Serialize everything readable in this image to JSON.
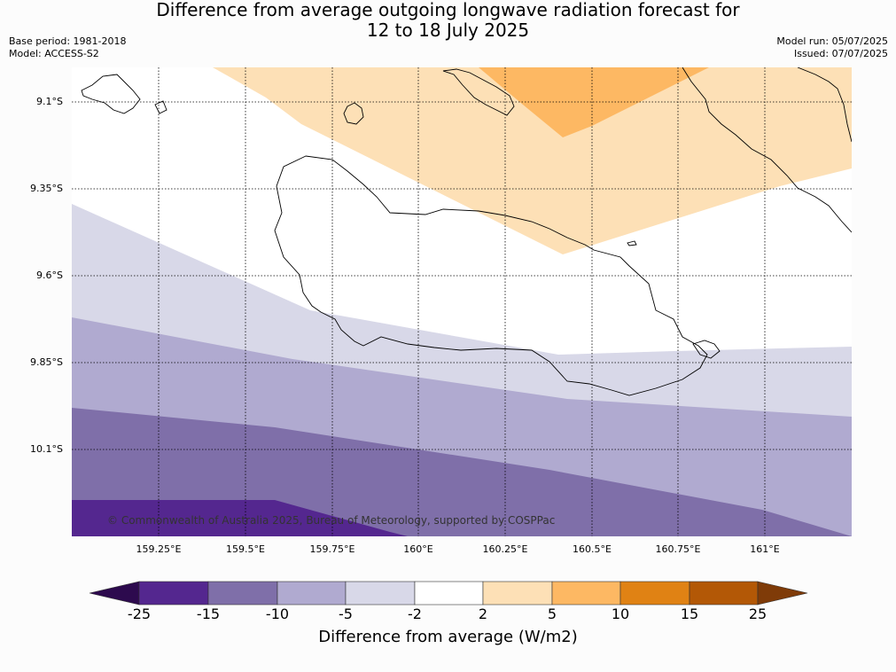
{
  "title_line1": "Difference from average outgoing longwave radiation forecast for",
  "title_line2": "12 to 18 July 2025",
  "base_period": "Base period: 1981-2018",
  "model": "Model: ACCESS-S2",
  "model_run": "Model run: 05/07/2025",
  "issued": "Issued: 07/07/2025",
  "lat_labels": [
    "9.1°S",
    "9.35°S",
    "9.6°S",
    "9.85°S",
    "10.1°S"
  ],
  "lon_labels": [
    "159.25°E",
    "159.5°E",
    "159.75°E",
    "160°E",
    "160.25°E",
    "160.5°E",
    "160.75°E",
    "161°E"
  ],
  "copyright": "© Commonwealth of Australia 2025, Bureau of Meteorology, supported by COSPPac",
  "colorbar": {
    "title": "Difference from average (W/m2)",
    "ticks": [
      "-25",
      "-15",
      "-10",
      "-5",
      "-2",
      "2",
      "5",
      "10",
      "15",
      "25"
    ],
    "colors": {
      "below_min": "#2d0a4e",
      "c_-25_-15": "#54278f",
      "c_-15_-10": "#7f6fa9",
      "c_-10_-5": "#b0aad0",
      "c_-5_-2": "#d8d8e8",
      "c_-2_2": "#ffffff",
      "c_2_5": "#fde0b6",
      "c_5_10": "#fdb863",
      "c_10_15": "#e08214",
      "c_15_25": "#b35806",
      "above_max": "#7f3b08"
    }
  }
}
